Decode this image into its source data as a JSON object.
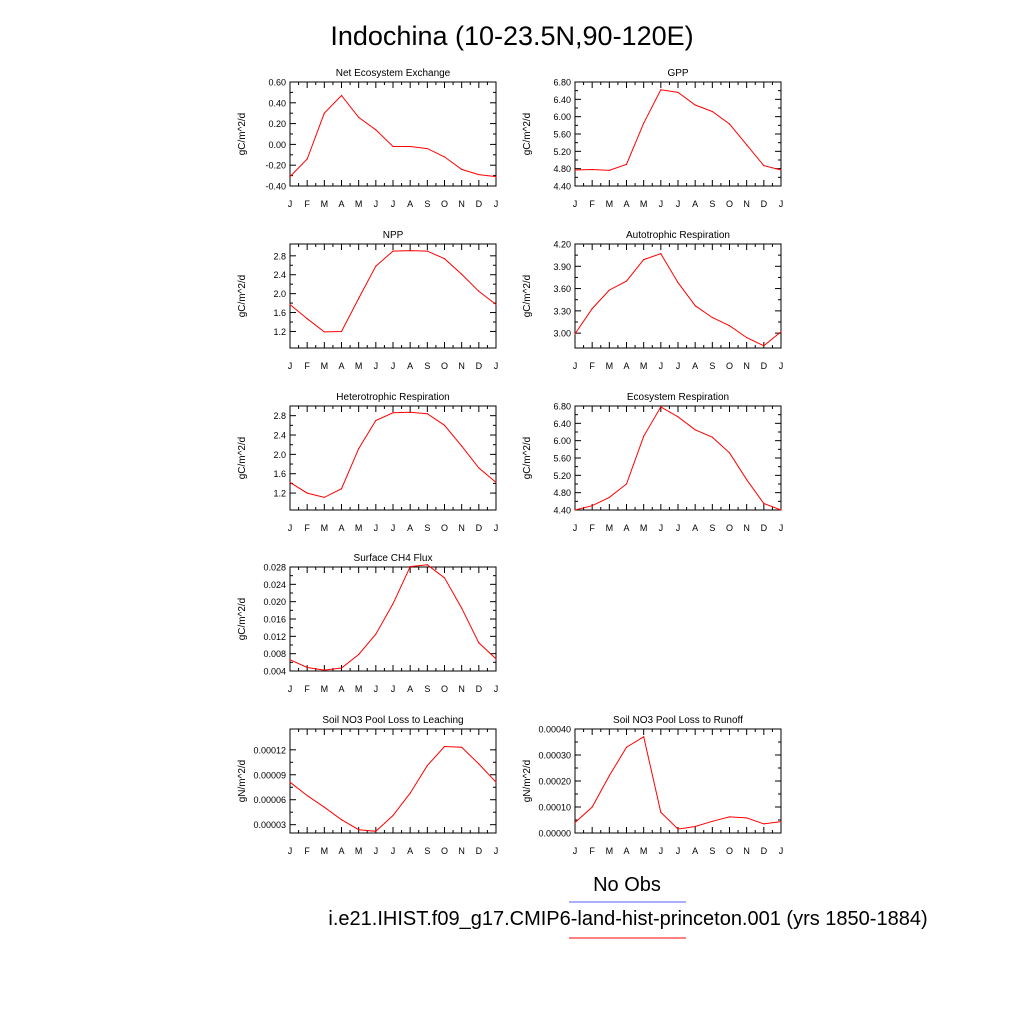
{
  "figure": {
    "title": "Indochina (10-23.5N,90-120E)",
    "legend": {
      "obs_label": "No Obs",
      "obs_color": "#5b5bff",
      "model_label": "i.e21.IHIST.f09_g17.CMIP6-land-hist-princeton.001 (yrs 1850-1884)",
      "model_color": "#ff0000"
    },
    "line_color": "#ff0000"
  },
  "chart_data": [
    {
      "type": "line",
      "title": "Net Ecosystem Exchange",
      "ylabel": "gC/m^2/d",
      "x": [
        "J",
        "F",
        "M",
        "A",
        "M",
        "J",
        "J",
        "A",
        "S",
        "O",
        "N",
        "D",
        "J"
      ],
      "ylim": [
        -0.4,
        0.6
      ],
      "yticks": [
        -0.4,
        -0.2,
        0.0,
        0.2,
        0.4,
        0.6
      ],
      "ytick_labels": [
        "-0.40",
        "-0.20",
        "0.00",
        "0.20",
        "0.40",
        "0.60"
      ],
      "values": [
        -0.31,
        -0.14,
        0.3,
        0.47,
        0.26,
        0.14,
        -0.02,
        -0.02,
        -0.04,
        -0.12,
        -0.24,
        -0.29,
        -0.31
      ]
    },
    {
      "type": "line",
      "title": "GPP",
      "ylabel": "gC/m^2/d",
      "x": [
        "J",
        "F",
        "M",
        "A",
        "M",
        "J",
        "J",
        "A",
        "S",
        "O",
        "N",
        "D",
        "J"
      ],
      "ylim": [
        4.4,
        6.8
      ],
      "yticks": [
        4.4,
        4.8,
        5.2,
        5.6,
        6.0,
        6.4,
        6.8
      ],
      "ytick_labels": [
        "4.40",
        "4.80",
        "5.20",
        "5.60",
        "6.00",
        "6.40",
        "6.80"
      ],
      "values": [
        4.77,
        4.78,
        4.76,
        4.9,
        5.85,
        6.62,
        6.56,
        6.27,
        6.12,
        5.83,
        5.35,
        4.87,
        4.77
      ]
    },
    {
      "type": "line",
      "title": "NPP",
      "ylabel": "gC/m^2/d",
      "x": [
        "J",
        "F",
        "M",
        "A",
        "M",
        "J",
        "J",
        "A",
        "S",
        "O",
        "N",
        "D",
        "J"
      ],
      "ylim": [
        0.85,
        3.05
      ],
      "yticks": [
        1.2,
        1.6,
        2.0,
        2.4,
        2.8
      ],
      "ytick_labels": [
        "1.2",
        "1.6",
        "2.0",
        "2.4",
        "2.8"
      ],
      "values": [
        1.77,
        1.47,
        1.19,
        1.2,
        1.9,
        2.58,
        2.9,
        2.91,
        2.9,
        2.74,
        2.41,
        2.05,
        1.77
      ]
    },
    {
      "type": "line",
      "title": "Autotrophic Respiration",
      "ylabel": "gC/m^2/d",
      "x": [
        "J",
        "F",
        "M",
        "A",
        "M",
        "J",
        "J",
        "A",
        "S",
        "O",
        "N",
        "D",
        "J"
      ],
      "ylim": [
        2.8,
        4.2
      ],
      "yticks": [
        3.0,
        3.3,
        3.6,
        3.9,
        4.2
      ],
      "ytick_labels": [
        "3.00",
        "3.30",
        "3.60",
        "3.90",
        "4.20"
      ],
      "values": [
        2.99,
        3.33,
        3.58,
        3.7,
        3.99,
        4.07,
        3.68,
        3.37,
        3.21,
        3.1,
        2.94,
        2.83,
        3.02
      ]
    },
    {
      "type": "line",
      "title": "Heterotrophic Respiration",
      "ylabel": "gC/m^2/d",
      "x": [
        "J",
        "F",
        "M",
        "A",
        "M",
        "J",
        "J",
        "A",
        "S",
        "O",
        "N",
        "D",
        "J"
      ],
      "ylim": [
        0.85,
        3.0
      ],
      "yticks": [
        1.2,
        1.6,
        2.0,
        2.4,
        2.8
      ],
      "ytick_labels": [
        "1.2",
        "1.6",
        "2.0",
        "2.4",
        "2.8"
      ],
      "values": [
        1.42,
        1.2,
        1.11,
        1.29,
        2.12,
        2.7,
        2.86,
        2.87,
        2.84,
        2.6,
        2.17,
        1.72,
        1.42
      ]
    },
    {
      "type": "line",
      "title": "Ecosystem Respiration",
      "ylabel": "gC/m^2/d",
      "x": [
        "J",
        "F",
        "M",
        "A",
        "M",
        "J",
        "J",
        "A",
        "S",
        "O",
        "N",
        "D",
        "J"
      ],
      "ylim": [
        4.4,
        6.8
      ],
      "yticks": [
        4.4,
        4.8,
        5.2,
        5.6,
        6.0,
        6.4,
        6.8
      ],
      "ytick_labels": [
        "4.40",
        "4.80",
        "5.20",
        "5.60",
        "6.00",
        "6.40",
        "6.80"
      ],
      "values": [
        4.4,
        4.5,
        4.69,
        5.0,
        6.1,
        6.78,
        6.55,
        6.25,
        6.08,
        5.72,
        5.1,
        4.55,
        4.4
      ]
    },
    {
      "type": "line",
      "title": "Surface CH4 Flux",
      "ylabel": "gC/m^2/d",
      "x": [
        "J",
        "F",
        "M",
        "A",
        "M",
        "J",
        "J",
        "A",
        "S",
        "O",
        "N",
        "D",
        "J"
      ],
      "ylim": [
        0.004,
        0.028
      ],
      "yticks": [
        0.004,
        0.008,
        0.012,
        0.016,
        0.02,
        0.024,
        0.028
      ],
      "ytick_labels": [
        "0.004",
        "0.008",
        "0.012",
        "0.016",
        "0.020",
        "0.024",
        "0.028"
      ],
      "values": [
        0.0066,
        0.0048,
        0.0042,
        0.0047,
        0.0078,
        0.0125,
        0.0195,
        0.0281,
        0.0285,
        0.0255,
        0.0185,
        0.0105,
        0.0068
      ]
    },
    {
      "type": "line",
      "title": "Soil NO3 Pool Loss to Leaching",
      "ylabel": "gN/m^2/d",
      "x": [
        "J",
        "F",
        "M",
        "A",
        "M",
        "J",
        "J",
        "A",
        "S",
        "O",
        "N",
        "D",
        "J"
      ],
      "ylim": [
        2e-05,
        0.000145
      ],
      "yticks": [
        3e-05,
        6e-05,
        9e-05,
        0.00012
      ],
      "ytick_labels": [
        "0.00003",
        "0.00006",
        "0.00009",
        "0.00012"
      ],
      "values": [
        8.1e-05,
        6.5e-05,
        5.1e-05,
        3.6e-05,
        2.4e-05,
        2.2e-05,
        4.1e-05,
        6.8e-05,
        0.000101,
        0.000124,
        0.000123,
        0.000103,
        8.1e-05
      ]
    },
    {
      "type": "line",
      "title": "Soil NO3 Pool Loss to Runoff",
      "ylabel": "gN/m^2/d",
      "x": [
        "J",
        "F",
        "M",
        "A",
        "M",
        "J",
        "J",
        "A",
        "S",
        "O",
        "N",
        "D",
        "J"
      ],
      "ylim": [
        0.0,
        0.0004
      ],
      "yticks": [
        0.0,
        0.0001,
        0.0002,
        0.0003,
        0.0004
      ],
      "ytick_labels": [
        "0.00000",
        "0.00010",
        "0.00020",
        "0.00030",
        "0.00040"
      ],
      "values": [
        4e-05,
        0.0001,
        0.00022,
        0.00033,
        0.00037,
        8e-05,
        1.5e-05,
        2.5e-05,
        4.5e-05,
        6.2e-05,
        5.8e-05,
        3.5e-05,
        4.4e-05
      ]
    }
  ]
}
